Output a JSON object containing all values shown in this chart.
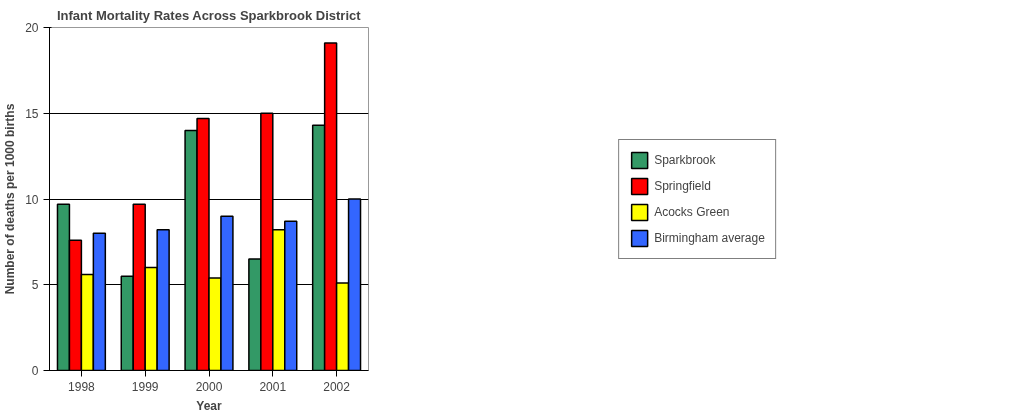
{
  "chart_data": {
    "type": "bar",
    "title": "Infant Mortality Rates Across Sparkbrook District",
    "xlabel": "Year",
    "ylabel": "Number of deaths per 1000 births",
    "categories": [
      "1998",
      "1999",
      "2000",
      "2001",
      "2002"
    ],
    "series": [
      {
        "name": "Sparkbrook",
        "color": "#339966",
        "values": [
          9.7,
          5.5,
          14.0,
          6.5,
          14.3
        ]
      },
      {
        "name": "Springfield",
        "color": "#ff0000",
        "values": [
          7.6,
          9.7,
          14.7,
          15.0,
          19.1
        ]
      },
      {
        "name": "Acocks Green",
        "color": "#ffff00",
        "values": [
          5.6,
          6.0,
          5.4,
          8.2,
          5.1
        ]
      },
      {
        "name": "Birmingham average",
        "color": "#3366ff",
        "values": [
          8.0,
          8.2,
          9.0,
          8.7,
          10.0
        ]
      }
    ],
    "ylim": [
      0,
      20
    ],
    "yticks": [
      0,
      5,
      10,
      15,
      20
    ],
    "grid": "y",
    "legend": "right"
  }
}
